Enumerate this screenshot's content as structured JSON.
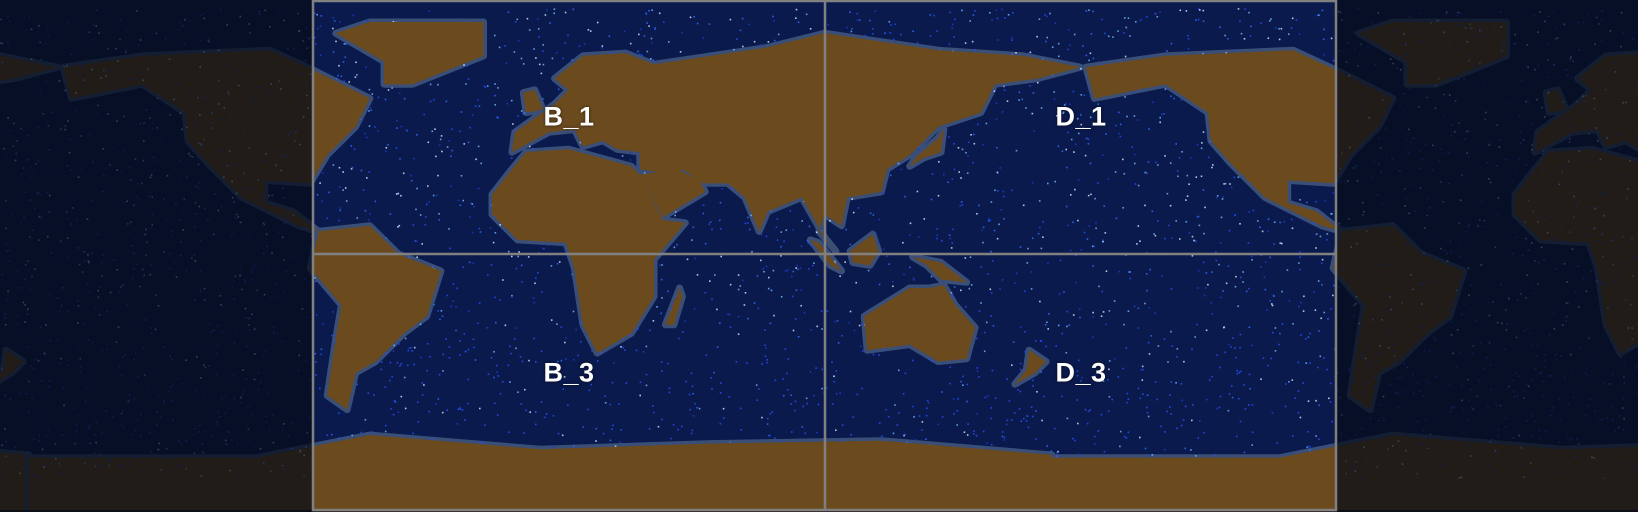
{
  "map": {
    "tiles": [
      {
        "id": "B_1",
        "label": "B_1"
      },
      {
        "id": "D_1",
        "label": "D_1"
      },
      {
        "id": "B_3",
        "label": "B_3"
      },
      {
        "id": "D_3",
        "label": "D_3"
      }
    ],
    "colors": {
      "land": "#6b4a1e",
      "ocean": "#0b1a4c",
      "shelf": "#3a4f78",
      "points": "#2a5cff",
      "grid": "#808080",
      "outside_dim": "#060b18"
    }
  }
}
